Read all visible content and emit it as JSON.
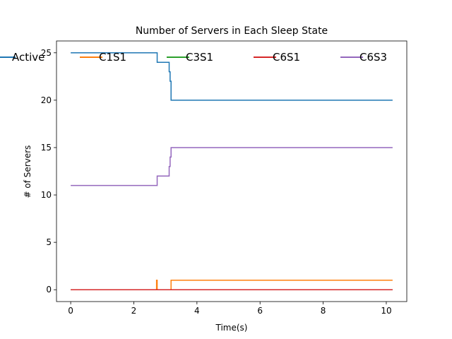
{
  "chart_data": {
    "type": "line",
    "title": "Number of Servers in Each Sleep State",
    "xlabel": "Time(s)",
    "ylabel": "# of Servers",
    "xlim": [
      -0.45,
      10.65
    ],
    "ylim": [
      -1.25,
      26.25
    ],
    "xticks": [
      0,
      2,
      4,
      6,
      8,
      10
    ],
    "yticks": [
      0,
      5,
      10,
      15,
      20,
      25
    ],
    "grid": false,
    "legend_position": "top",
    "series": [
      {
        "name": "Active",
        "color": "#1f77b4",
        "points": [
          [
            0,
            25
          ],
          [
            2.74,
            25
          ],
          [
            2.74,
            24
          ],
          [
            3.12,
            24
          ],
          [
            3.12,
            23
          ],
          [
            3.15,
            23
          ],
          [
            3.15,
            22
          ],
          [
            3.18,
            22
          ],
          [
            3.18,
            20
          ],
          [
            10.2,
            20
          ]
        ]
      },
      {
        "name": "C1S1",
        "color": "#ff7f0e",
        "points": [
          [
            0,
            0
          ],
          [
            2.72,
            0
          ],
          [
            2.72,
            1
          ],
          [
            2.74,
            1
          ],
          [
            2.74,
            0
          ],
          [
            3.18,
            0
          ],
          [
            3.18,
            1
          ],
          [
            10.2,
            1
          ]
        ]
      },
      {
        "name": "C3S1",
        "color": "#2ca02c",
        "points": [
          [
            0,
            0
          ],
          [
            10.2,
            0
          ]
        ]
      },
      {
        "name": "C6S1",
        "color": "#d62728",
        "points": [
          [
            0,
            0
          ],
          [
            10.2,
            0
          ]
        ]
      },
      {
        "name": "C6S3",
        "color": "#9467bd",
        "points": [
          [
            0,
            11
          ],
          [
            2.74,
            11
          ],
          [
            2.74,
            12
          ],
          [
            3.12,
            12
          ],
          [
            3.12,
            13
          ],
          [
            3.15,
            13
          ],
          [
            3.15,
            14
          ],
          [
            3.18,
            14
          ],
          [
            3.18,
            15
          ],
          [
            10.2,
            15
          ]
        ]
      }
    ]
  }
}
